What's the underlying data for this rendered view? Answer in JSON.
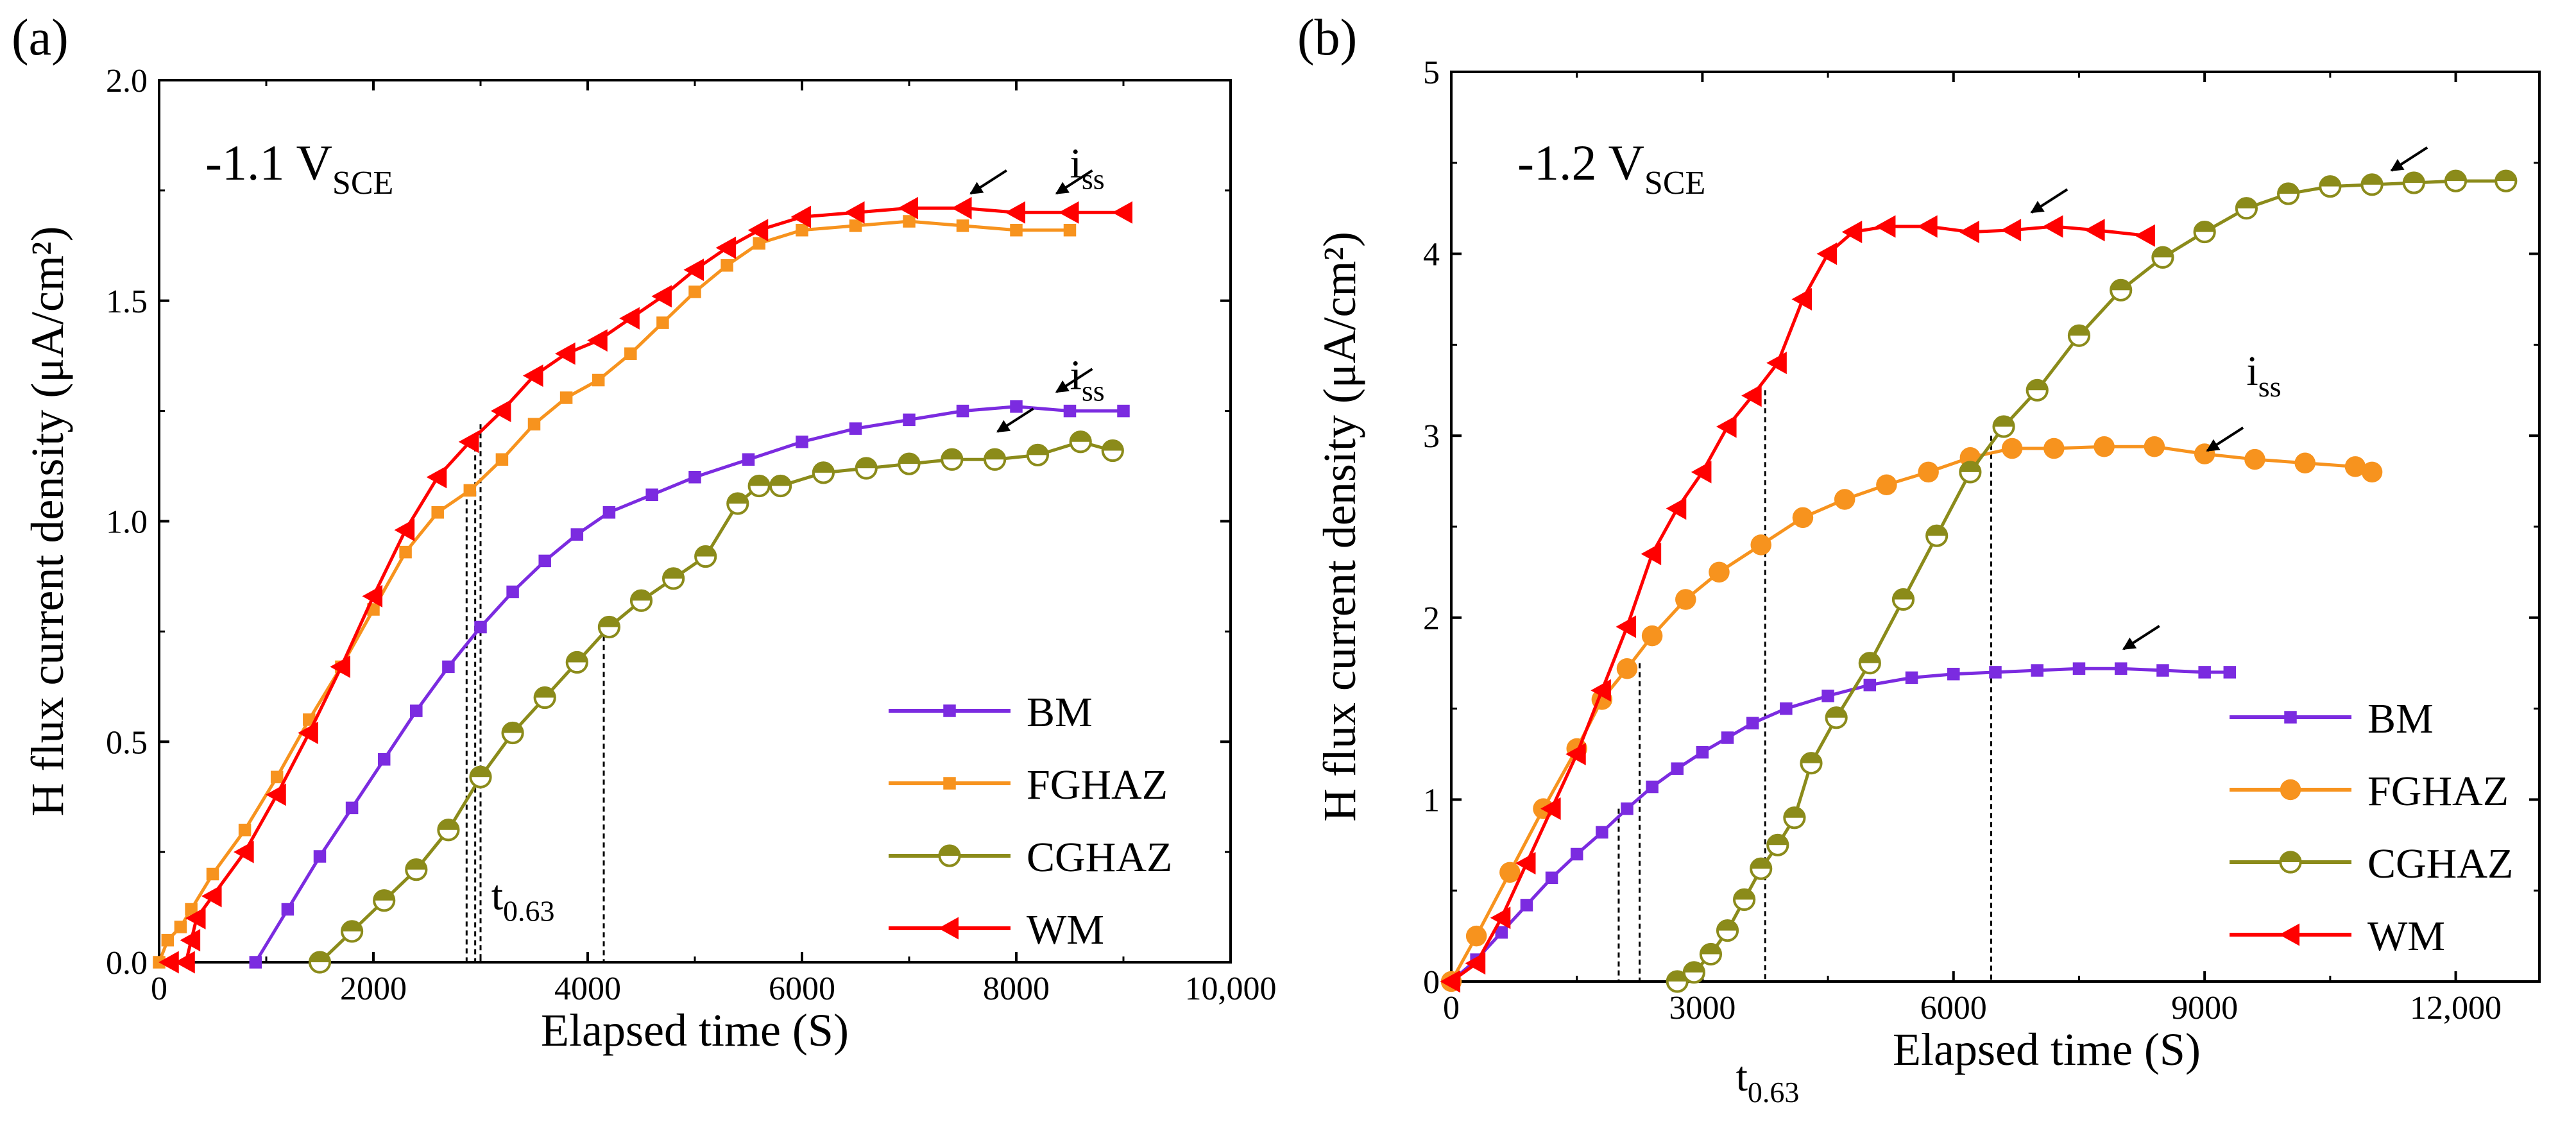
{
  "chart_data": [
    {
      "type": "line",
      "panel_label": "(a)",
      "condition": "-1.1 V",
      "condition_subscript": "SCE",
      "xlabel": "Elapsed time (S)",
      "ylabel": "H flux current density (μA/cm²)",
      "xlim": [
        0,
        10000
      ],
      "ylim": [
        0,
        2.0
      ],
      "xticks": [
        0,
        2000,
        4000,
        6000,
        8000,
        10000
      ],
      "xtick_labels": [
        "0",
        "2000",
        "4000",
        "6000",
        "8000",
        "10,000"
      ],
      "yticks": [
        0,
        0.5,
        1.0,
        1.5,
        2.0
      ],
      "ytick_labels": [
        "0.0",
        "0.5",
        "1.0",
        "1.5",
        "2.0"
      ],
      "legend_position": "bottom-right",
      "annotations": [
        {
          "text": "i",
          "subscript": "ss",
          "x": 8500,
          "y": 1.78
        },
        {
          "text": "i",
          "subscript": "ss",
          "x": 8500,
          "y": 1.3
        },
        {
          "text": "t",
          "subscript": "0.63",
          "x": 3100,
          "y": 0.12
        }
      ],
      "arrows": [
        {
          "x": 7550,
          "y": 1.74
        },
        {
          "x": 8350,
          "y": 1.74
        },
        {
          "x": 8350,
          "y": 1.29
        },
        {
          "x": 7800,
          "y": 1.2
        }
      ],
      "t063_lines": [
        {
          "x": 2870,
          "y": 1.07
        },
        {
          "x": 2950,
          "y": 1.17
        },
        {
          "x": 3000,
          "y": 1.22
        },
        {
          "x": 4150,
          "y": 0.74
        }
      ],
      "series": [
        {
          "name": "BM",
          "color": "#7B2BE0",
          "marker": "square",
          "x": [
            900,
            1200,
            1500,
            1800,
            2100,
            2400,
            2700,
            3000,
            3300,
            3600,
            3900,
            4200,
            4600,
            5000,
            5500,
            6000,
            6500,
            7000,
            7500,
            8000,
            8500,
            9000
          ],
          "y": [
            0.0,
            0.12,
            0.24,
            0.35,
            0.46,
            0.57,
            0.67,
            0.76,
            0.84,
            0.91,
            0.97,
            1.02,
            1.06,
            1.1,
            1.14,
            1.18,
            1.21,
            1.23,
            1.25,
            1.26,
            1.25,
            1.25
          ]
        },
        {
          "name": "FGHAZ",
          "color": "#F7931E",
          "marker": "square",
          "x": [
            0,
            80,
            200,
            300,
            500,
            800,
            1100,
            1400,
            1700,
            2000,
            2300,
            2600,
            2900,
            3200,
            3500,
            3800,
            4100,
            4400,
            4700,
            5000,
            5300,
            5600,
            6000,
            6500,
            7000,
            7500,
            8000,
            8500
          ],
          "y": [
            0.0,
            0.05,
            0.08,
            0.12,
            0.2,
            0.3,
            0.42,
            0.55,
            0.67,
            0.8,
            0.93,
            1.02,
            1.07,
            1.14,
            1.22,
            1.28,
            1.32,
            1.38,
            1.45,
            1.52,
            1.58,
            1.63,
            1.66,
            1.67,
            1.68,
            1.67,
            1.66,
            1.66
          ]
        },
        {
          "name": "CGHAZ",
          "color": "#8B8B1A",
          "marker": "half-circle",
          "x": [
            1500,
            1800,
            2100,
            2400,
            2700,
            3000,
            3300,
            3600,
            3900,
            4200,
            4500,
            4800,
            5100,
            5400,
            5600,
            5800,
            6200,
            6600,
            7000,
            7400,
            7800,
            8200,
            8600,
            8900
          ],
          "y": [
            0.0,
            0.07,
            0.14,
            0.21,
            0.3,
            0.42,
            0.52,
            0.6,
            0.68,
            0.76,
            0.82,
            0.87,
            0.92,
            1.04,
            1.08,
            1.08,
            1.11,
            1.12,
            1.13,
            1.14,
            1.14,
            1.15,
            1.18,
            1.16
          ]
        },
        {
          "name": "WM",
          "color": "#FF0000",
          "marker": "triangle-left",
          "x": [
            100,
            250,
            300,
            350,
            500,
            800,
            1100,
            1400,
            1700,
            2000,
            2300,
            2600,
            2900,
            3200,
            3500,
            3800,
            4100,
            4400,
            4700,
            5000,
            5300,
            5600,
            6000,
            6500,
            7000,
            7500,
            8000,
            8500,
            9000
          ],
          "y": [
            0.0,
            0.0,
            0.05,
            0.1,
            0.15,
            0.25,
            0.38,
            0.52,
            0.67,
            0.83,
            0.98,
            1.1,
            1.18,
            1.25,
            1.33,
            1.38,
            1.41,
            1.46,
            1.51,
            1.57,
            1.62,
            1.66,
            1.69,
            1.7,
            1.71,
            1.71,
            1.7,
            1.7,
            1.7
          ]
        }
      ]
    },
    {
      "type": "line",
      "panel_label": "(b)",
      "condition": "-1.2 V",
      "condition_subscript": "SCE",
      "xlabel": "Elapsed time (S)",
      "ylabel": "H flux current density (μA/cm²)",
      "xlim": [
        0,
        13000
      ],
      "ylim": [
        0,
        5
      ],
      "xticks": [
        0,
        3000,
        6000,
        9000,
        12000
      ],
      "xtick_labels": [
        "0",
        "3000",
        "6000",
        "9000",
        "12,000"
      ],
      "yticks": [
        0,
        1,
        2,
        3,
        4,
        5
      ],
      "ytick_labels": [
        "0",
        "1",
        "2",
        "3",
        "4",
        "5"
      ],
      "legend_position": "bottom-right",
      "annotations": [
        {
          "text": "i",
          "subscript": "ss",
          "x": 9500,
          "y": 3.28
        },
        {
          "text": "t",
          "subscript": "0.63",
          "x": 3400,
          "y": -0.6
        }
      ],
      "arrows": [
        {
          "x": 6900,
          "y": 4.22
        },
        {
          "x": 11200,
          "y": 4.45
        },
        {
          "x": 9000,
          "y": 2.91
        },
        {
          "x": 8000,
          "y": 1.82
        }
      ],
      "t063_lines": [
        {
          "x": 2000,
          "y": 0.95
        },
        {
          "x": 2250,
          "y": 1.75
        },
        {
          "x": 3750,
          "y": 3.25
        },
        {
          "x": 6450,
          "y": 3.0
        }
      ],
      "series": [
        {
          "name": "BM",
          "color": "#7B2BE0",
          "marker": "square",
          "x": [
            0,
            300,
            600,
            900,
            1200,
            1500,
            1800,
            2100,
            2400,
            2700,
            3000,
            3300,
            3600,
            4000,
            4500,
            5000,
            5500,
            6000,
            6500,
            7000,
            7500,
            8000,
            8500,
            9000,
            9300
          ],
          "y": [
            0.0,
            0.12,
            0.27,
            0.42,
            0.57,
            0.7,
            0.82,
            0.95,
            1.07,
            1.17,
            1.26,
            1.34,
            1.42,
            1.5,
            1.57,
            1.63,
            1.67,
            1.69,
            1.7,
            1.71,
            1.72,
            1.72,
            1.71,
            1.7,
            1.7
          ]
        },
        {
          "name": "FGHAZ",
          "color": "#F7931E",
          "marker": "circle",
          "x": [
            0,
            300,
            700,
            1100,
            1500,
            1800,
            2100,
            2400,
            2800,
            3200,
            3700,
            4200,
            4700,
            5200,
            5700,
            6200,
            6700,
            7200,
            7800,
            8400,
            9000,
            9600,
            10200,
            10800,
            11000
          ],
          "y": [
            0.0,
            0.25,
            0.6,
            0.95,
            1.28,
            1.55,
            1.72,
            1.9,
            2.1,
            2.25,
            2.4,
            2.55,
            2.65,
            2.73,
            2.8,
            2.88,
            2.93,
            2.93,
            2.94,
            2.94,
            2.9,
            2.87,
            2.85,
            2.83,
            2.8
          ]
        },
        {
          "name": "CGHAZ",
          "color": "#8B8B1A",
          "marker": "half-circle",
          "x": [
            2700,
            2900,
            3100,
            3300,
            3500,
            3700,
            3900,
            4100,
            4300,
            4600,
            5000,
            5400,
            5800,
            6200,
            6600,
            7000,
            7500,
            8000,
            8500,
            9000,
            9500,
            10000,
            10500,
            11000,
            11500,
            12000,
            12600
          ],
          "y": [
            0.0,
            0.05,
            0.15,
            0.28,
            0.45,
            0.62,
            0.75,
            0.9,
            1.2,
            1.45,
            1.75,
            2.1,
            2.45,
            2.8,
            3.05,
            3.25,
            3.55,
            3.8,
            3.98,
            4.12,
            4.25,
            4.33,
            4.37,
            4.38,
            4.39,
            4.4,
            4.4
          ]
        },
        {
          "name": "WM",
          "color": "#FF0000",
          "marker": "triangle-left",
          "x": [
            0,
            300,
            600,
            900,
            1200,
            1500,
            1800,
            2100,
            2400,
            2700,
            3000,
            3300,
            3600,
            3900,
            4200,
            4500,
            4800,
            5200,
            5700,
            6200,
            6700,
            7200,
            7700,
            8300
          ],
          "y": [
            0.0,
            0.1,
            0.35,
            0.65,
            0.95,
            1.25,
            1.6,
            1.95,
            2.35,
            2.6,
            2.8,
            3.05,
            3.22,
            3.4,
            3.75,
            4.0,
            4.12,
            4.15,
            4.15,
            4.12,
            4.13,
            4.15,
            4.13,
            4.1
          ]
        }
      ]
    }
  ]
}
